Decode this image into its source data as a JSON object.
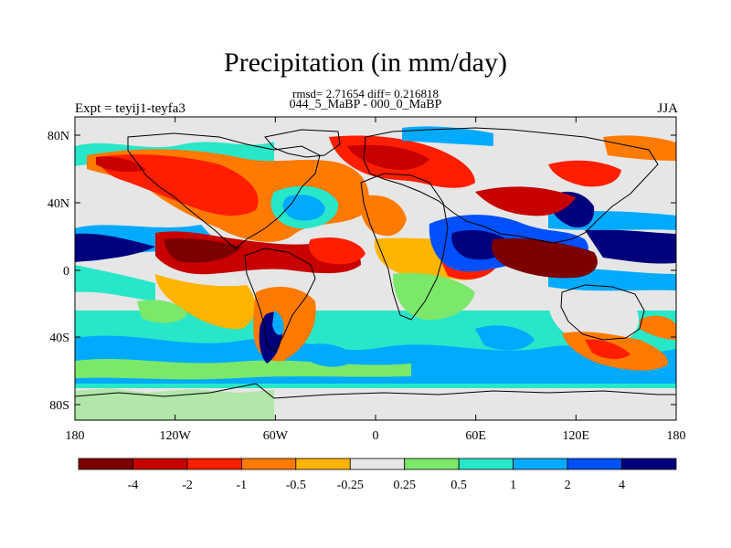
{
  "title": "Precipitation (in mm/day)",
  "subtitle_stats": "rmsd= 2.71654 diff= 0.216818",
  "subtitle_runs": "044_5_MaBP - 000_0_MaBP",
  "left_string": "Expt = teyij1-teyfa3",
  "right_string": "JJA",
  "lat_labels": [
    "80N",
    "40N",
    "0",
    "40S",
    "80S"
  ],
  "lon_labels": [
    "180",
    "120W",
    "60W",
    "0",
    "60E",
    "120E",
    "180"
  ],
  "colorbar": {
    "colors": [
      "#7d0000",
      "#c70000",
      "#ff1e00",
      "#ff7a00",
      "#ffb400",
      "#e6e6e6",
      "#7be86a",
      "#28e6c8",
      "#00aaff",
      "#0050ff",
      "#00007d"
    ],
    "labels": [
      "-4",
      "-2",
      "-1",
      "-0.5",
      "-0.25",
      "0.25",
      "0.5",
      "1",
      "2",
      "4"
    ]
  }
}
